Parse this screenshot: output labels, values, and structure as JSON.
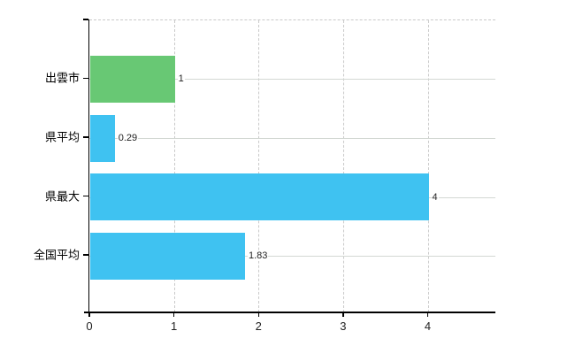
{
  "chart_data": {
    "type": "bar",
    "orientation": "horizontal",
    "title": "",
    "categories": [
      "出雲市",
      "県平均",
      "県最大",
      "全国平均"
    ],
    "values": [
      1,
      0.29,
      4,
      1.83
    ],
    "value_labels": [
      "1",
      "0.29",
      "4",
      "1.83"
    ],
    "bar_colors": [
      "#68c874",
      "#3fc2f1",
      "#3fc2f1",
      "#3fc2f1"
    ],
    "x_ticks": [
      0,
      1,
      2,
      3,
      4
    ],
    "x_tick_labels": [
      "0",
      "1",
      "2",
      "3",
      "4"
    ],
    "xlim": [
      0,
      4.8
    ],
    "grid": true,
    "legend": false,
    "colors": {
      "accent_green": "#68c874",
      "accent_blue": "#3fc2f1",
      "grid_solid": "#d3d8d3",
      "grid_dashed": "#c9c9c9",
      "axis": "#000000",
      "text": "#222222",
      "background": "#ffffff"
    }
  }
}
